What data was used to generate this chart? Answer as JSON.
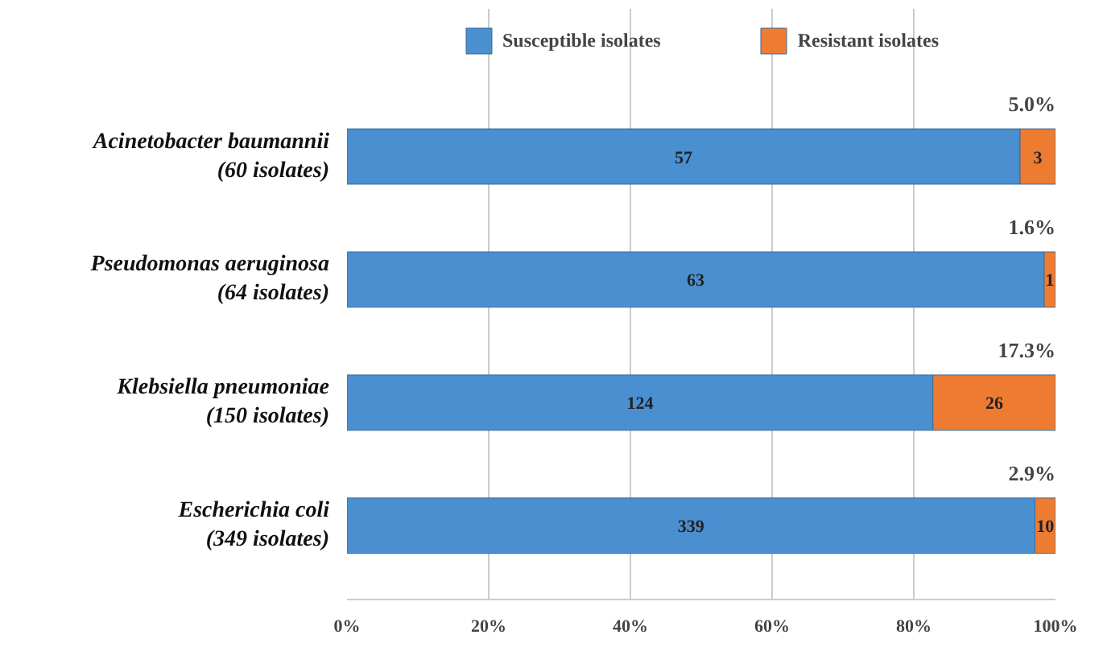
{
  "chart_data": {
    "type": "bar",
    "orientation": "horizontal",
    "stacked": true,
    "categories": [
      "Acinetobacter baumannii\n(60 isolates)",
      "Pseudomonas aeruginosa\n(64 isolates)",
      "Klebsiella pneumoniae\n(150 isolates)",
      "Escherichia coli\n(349 isolates)"
    ],
    "series": [
      {
        "name": "Susceptible isolates",
        "color": "#4a8fd0",
        "values": [
          95.0,
          98.4,
          82.7,
          97.1
        ]
      },
      {
        "name": "Resistant isolates",
        "color": "#ee7b32",
        "values": [
          5.0,
          1.6,
          17.3,
          2.9
        ]
      }
    ],
    "xlim": [
      0,
      100
    ],
    "xticks": [
      {
        "value": 0,
        "label": "0%"
      },
      {
        "value": 20,
        "label": "20%"
      },
      {
        "value": 40,
        "label": "40%"
      },
      {
        "value": 60,
        "label": "60%"
      },
      {
        "value": 80,
        "label": "80%"
      },
      {
        "value": 100,
        "label": "100%"
      }
    ],
    "annotations": [
      "5.0%",
      "57",
      "3",
      "1.6%",
      "63",
      "1",
      "17.3%",
      "124",
      "26",
      "2.9%",
      "339",
      "10"
    ],
    "grid": "x",
    "legend": "top"
  }
}
